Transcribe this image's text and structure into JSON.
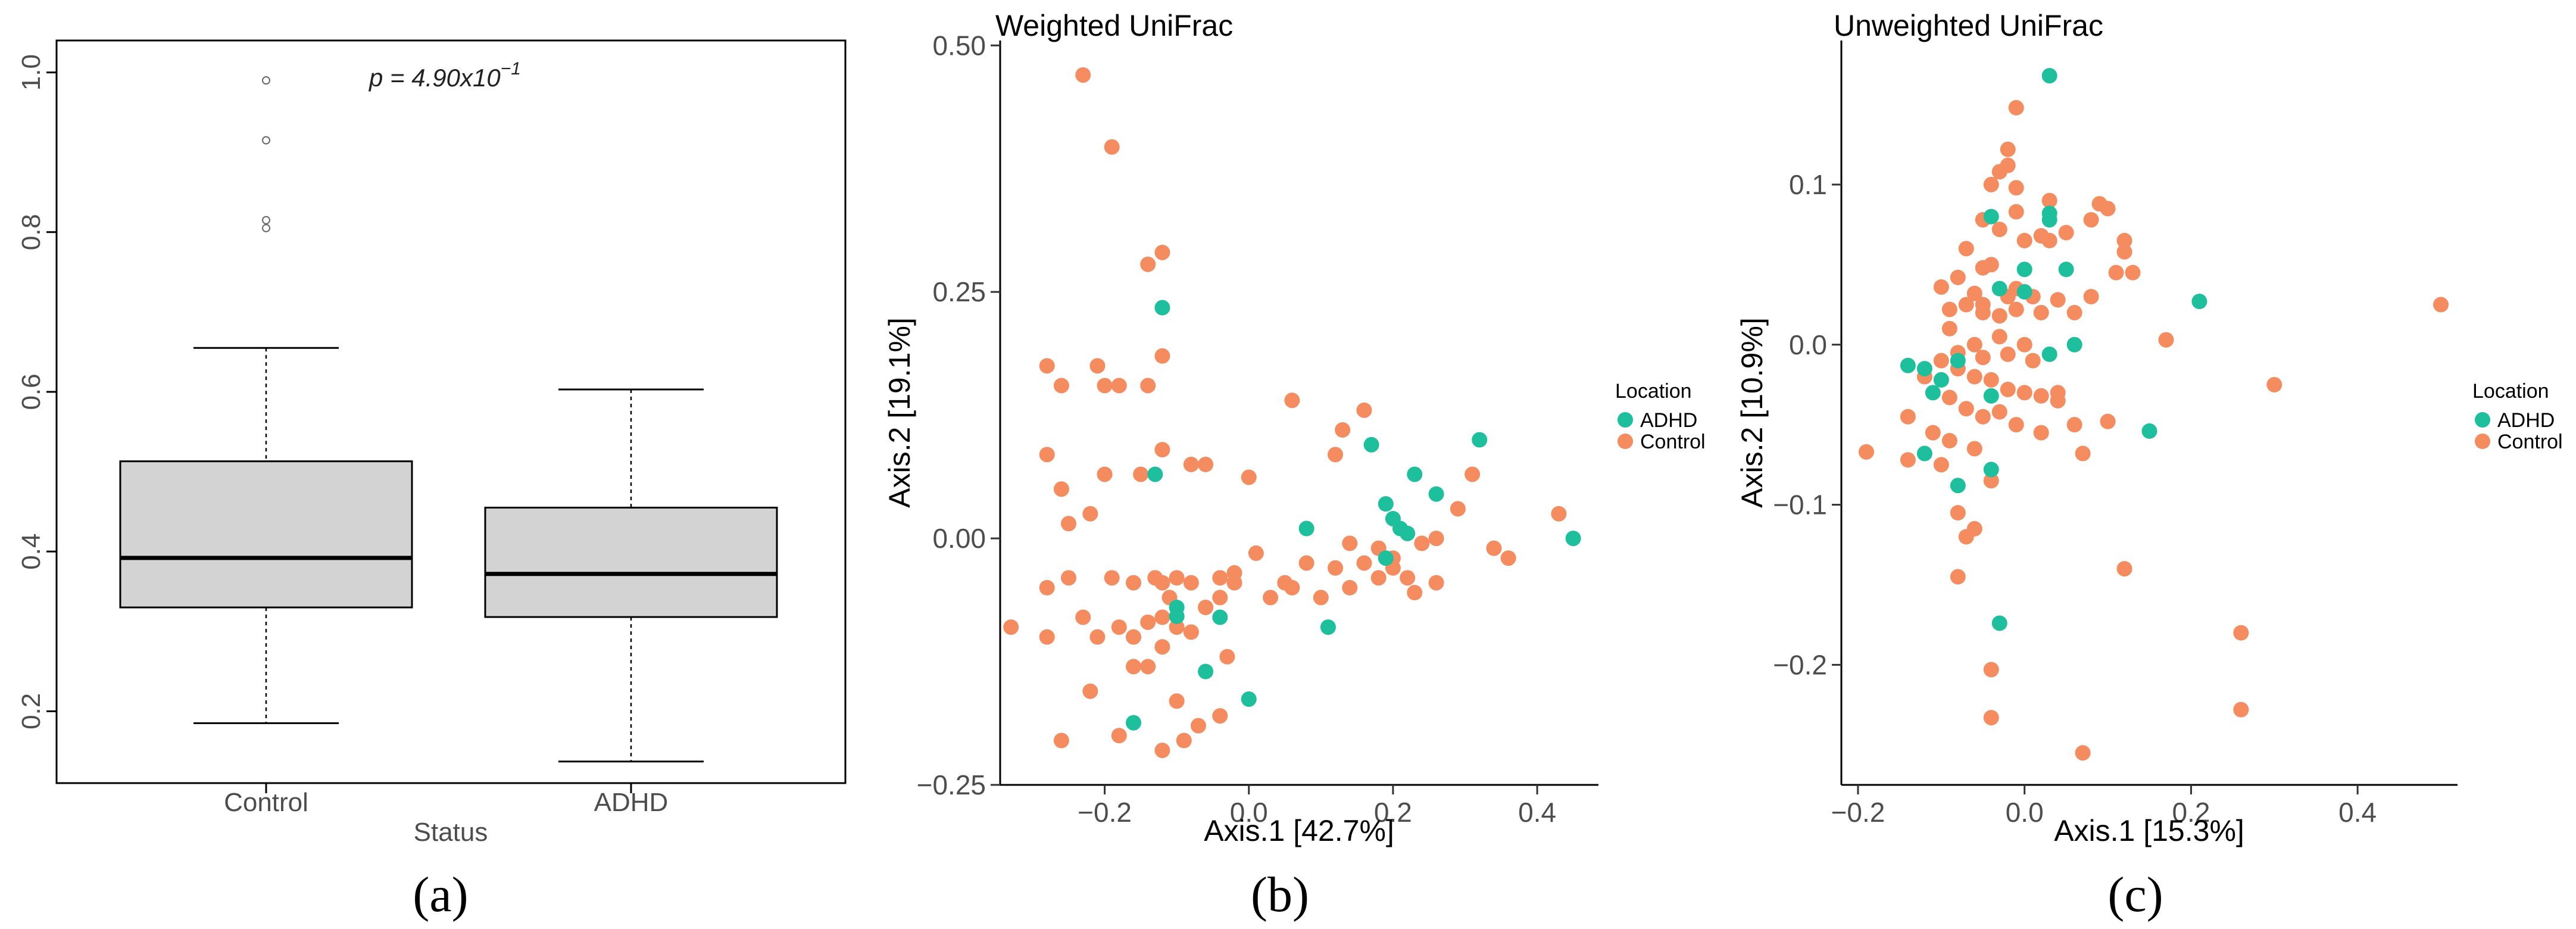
{
  "colors": {
    "adhd": "#1dbf9c",
    "control": "#f48c5f",
    "box_fill": "#d3d3d3"
  },
  "chart_data": [
    {
      "type": "box",
      "panel_label": "(a)",
      "xlabel": "Status",
      "ylim": [
        0.11,
        1.04
      ],
      "yticks": [
        "0.2",
        "0.4",
        "0.6",
        "0.8",
        "1.0"
      ],
      "categories": [
        "Control",
        "ADHD"
      ],
      "annotation": {
        "prefix": "p = 4.90x10",
        "exponent": "−1"
      },
      "boxes": [
        {
          "name": "Control",
          "whisker_low": 0.185,
          "q1": 0.33,
          "median": 0.392,
          "q3": 0.513,
          "whisker_high": 0.655,
          "outliers": [
            0.99,
            0.915,
            0.815,
            0.805
          ]
        },
        {
          "name": "ADHD",
          "whisker_low": 0.137,
          "q1": 0.318,
          "median": 0.372,
          "q3": 0.455,
          "whisker_high": 0.603,
          "outliers": []
        }
      ]
    },
    {
      "type": "scatter",
      "panel_label": "(b)",
      "title": "Weighted UniFrac",
      "xlabel": "Axis.1   [42.7%]",
      "ylabel": "Axis.2   [19.1%]",
      "xlim": [
        -0.345,
        0.485
      ],
      "ylim": [
        -0.25,
        0.505
      ],
      "xticks": [
        "−0.2",
        "0.0",
        "0.2",
        "0.4"
      ],
      "yticks": [
        "0.50",
        "0.25",
        "0.00",
        "−0.25"
      ],
      "legend": {
        "title": "Location",
        "entries": [
          "ADHD",
          "Control"
        ]
      },
      "series": [
        {
          "name": "ADHD",
          "x": [
            -0.12,
            -0.13,
            -0.1,
            -0.1,
            -0.04,
            -0.06,
            0.0,
            -0.16,
            0.08,
            0.11,
            0.17,
            0.19,
            0.2,
            0.21,
            0.23,
            0.26,
            0.32,
            0.45,
            0.22,
            0.19
          ],
          "y": [
            0.234,
            0.065,
            -0.07,
            -0.079,
            -0.08,
            -0.135,
            -0.163,
            -0.187,
            0.01,
            -0.09,
            0.095,
            0.035,
            0.02,
            0.01,
            0.065,
            0.045,
            0.1,
            0.0,
            0.005,
            -0.02
          ]
        },
        {
          "name": "Control",
          "x": [
            -0.23,
            -0.19,
            -0.12,
            -0.14,
            -0.12,
            -0.28,
            -0.26,
            -0.21,
            -0.18,
            -0.2,
            -0.14,
            -0.28,
            -0.26,
            -0.2,
            -0.12,
            -0.15,
            -0.08,
            -0.06,
            0.0,
            0.06,
            0.13,
            0.16,
            0.12,
            -0.25,
            -0.22,
            -0.28,
            -0.25,
            -0.19,
            -0.16,
            -0.13,
            -0.12,
            -0.1,
            -0.08,
            -0.04,
            -0.02,
            0.01,
            0.05,
            0.08,
            0.12,
            0.14,
            0.16,
            0.18,
            0.2,
            0.22,
            0.24,
            0.26,
            0.29,
            0.31,
            0.34,
            0.36,
            0.43,
            -0.33,
            -0.28,
            -0.23,
            -0.21,
            -0.18,
            -0.16,
            -0.14,
            -0.12,
            -0.1,
            -0.08,
            -0.06,
            -0.04,
            -0.02,
            0.03,
            0.06,
            0.1,
            0.14,
            0.18,
            0.2,
            0.23,
            0.26,
            -0.26,
            -0.22,
            -0.18,
            -0.16,
            -0.14,
            -0.1,
            -0.07,
            -0.04,
            -0.11,
            -0.12,
            -0.09,
            -0.12,
            -0.03
          ],
          "y": [
            0.47,
            0.397,
            0.29,
            0.278,
            0.185,
            0.175,
            0.155,
            0.175,
            0.155,
            0.155,
            0.155,
            0.085,
            0.05,
            0.065,
            0.09,
            0.065,
            0.075,
            0.075,
            0.062,
            0.14,
            0.11,
            0.13,
            0.085,
            0.015,
            0.025,
            -0.05,
            -0.04,
            -0.04,
            -0.045,
            -0.04,
            -0.045,
            -0.04,
            -0.045,
            -0.04,
            -0.035,
            -0.015,
            -0.045,
            -0.025,
            -0.03,
            -0.005,
            -0.025,
            -0.01,
            -0.02,
            -0.04,
            -0.005,
            0.0,
            0.03,
            0.065,
            -0.01,
            -0.02,
            0.025,
            -0.09,
            -0.1,
            -0.08,
            -0.1,
            -0.09,
            -0.1,
            -0.085,
            -0.08,
            -0.09,
            -0.095,
            -0.07,
            -0.06,
            -0.045,
            -0.06,
            -0.05,
            -0.06,
            -0.05,
            -0.04,
            -0.03,
            -0.055,
            -0.045,
            -0.205,
            -0.155,
            -0.2,
            -0.13,
            -0.13,
            -0.165,
            -0.19,
            -0.18,
            -0.06,
            -0.215,
            -0.205,
            -0.11,
            -0.12
          ]
        }
      ]
    },
    {
      "type": "scatter",
      "panel_label": "(c)",
      "title": "Unweighted UniFrac",
      "xlabel": "Axis.1   [15.3%]",
      "ylabel": "Axis.2   [10.9%]",
      "xlim": [
        -0.22,
        0.52
      ],
      "ylim": [
        -0.275,
        0.19
      ],
      "xticks": [
        "−0.2",
        "0.0",
        "0.2",
        "0.4"
      ],
      "yticks": [
        "0.1",
        "0.0",
        "−0.1",
        "−0.2"
      ],
      "legend": {
        "title": "Location",
        "entries": [
          "ADHD",
          "Control"
        ]
      },
      "series": [
        {
          "name": "ADHD",
          "x": [
            0.03,
            0.03,
            0.03,
            -0.04,
            0.0,
            0.05,
            0.0,
            -0.03,
            0.03,
            0.06,
            0.21,
            -0.1,
            -0.08,
            -0.14,
            -0.12,
            -0.11,
            -0.04,
            -0.08,
            -0.04,
            -0.12,
            -0.03,
            0.15
          ],
          "y": [
            0.168,
            0.082,
            0.078,
            0.08,
            0.047,
            0.047,
            0.033,
            0.035,
            -0.006,
            0.0,
            0.027,
            -0.022,
            -0.01,
            -0.013,
            -0.015,
            -0.03,
            -0.032,
            -0.088,
            -0.078,
            -0.068,
            -0.174,
            -0.054
          ]
        },
        {
          "name": "Control",
          "x": [
            -0.01,
            -0.02,
            -0.02,
            -0.01,
            -0.03,
            -0.04,
            0.03,
            -0.01,
            0.09,
            0.1,
            0.08,
            0.12,
            0.12,
            0.11,
            -0.05,
            -0.03,
            0.0,
            0.02,
            -0.07,
            -0.04,
            -0.05,
            -0.08,
            -0.1,
            -0.06,
            -0.02,
            -0.01,
            0.01,
            0.04,
            0.06,
            0.08,
            -0.09,
            -0.07,
            -0.05,
            -0.03,
            -0.01,
            0.02,
            -0.09,
            -0.06,
            -0.03,
            0.0,
            -0.08,
            -0.05,
            -0.02,
            0.01,
            -0.1,
            -0.08,
            -0.06,
            -0.04,
            -0.02,
            0.0,
            0.04,
            -0.12,
            -0.09,
            -0.07,
            -0.05,
            -0.03,
            -0.01,
            -0.14,
            -0.11,
            -0.09,
            -0.06,
            0.02,
            0.06,
            0.1,
            -0.19,
            -0.14,
            -0.1,
            -0.08,
            -0.06,
            -0.04,
            0.07,
            0.17,
            0.3,
            0.5,
            0.12,
            0.26,
            0.26,
            -0.08,
            -0.07,
            -0.04,
            -0.04,
            0.07,
            0.04,
            0.02,
            0.13,
            -0.05,
            0.03,
            0.05
          ],
          "y": [
            0.148,
            0.122,
            0.112,
            0.098,
            0.108,
            0.1,
            0.09,
            0.083,
            0.088,
            0.085,
            0.078,
            0.065,
            0.058,
            0.045,
            0.078,
            0.072,
            0.065,
            0.068,
            0.06,
            0.05,
            0.048,
            0.042,
            0.036,
            0.032,
            0.03,
            0.035,
            0.03,
            0.028,
            0.02,
            0.03,
            0.022,
            0.025,
            0.02,
            0.018,
            0.022,
            0.02,
            0.01,
            0.0,
            0.005,
            0.0,
            -0.005,
            -0.008,
            -0.006,
            -0.01,
            -0.01,
            -0.015,
            -0.02,
            -0.022,
            -0.028,
            -0.03,
            -0.03,
            -0.02,
            -0.033,
            -0.04,
            -0.045,
            -0.042,
            -0.05,
            -0.045,
            -0.055,
            -0.06,
            -0.065,
            -0.055,
            -0.05,
            -0.048,
            -0.067,
            -0.072,
            -0.075,
            -0.105,
            -0.115,
            -0.085,
            -0.068,
            0.003,
            -0.025,
            0.025,
            -0.14,
            -0.18,
            -0.228,
            -0.145,
            -0.12,
            -0.203,
            -0.233,
            -0.255,
            -0.035,
            -0.032,
            0.045,
            0.025,
            0.065,
            0.07
          ]
        }
      ]
    }
  ]
}
